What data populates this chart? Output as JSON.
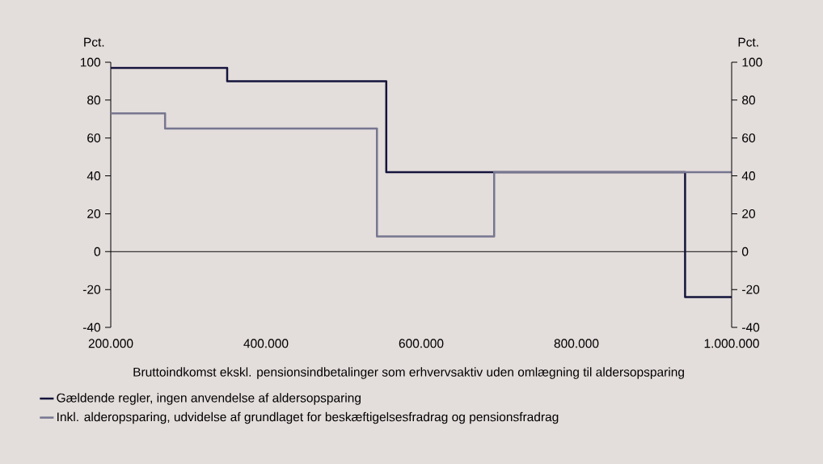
{
  "chart_data": {
    "type": "step",
    "xlabel": "Bruttoindkomst ekskl. pensionsindbetalinger som erhvervsaktiv uden omlægning til aldersopsparing",
    "ylabel": "Pct.",
    "y2label": "Pct.",
    "series": [
      {
        "name": "Gældende regler, ingen anvendelse af aldersopsparing",
        "color": "#14143c",
        "x": [
          200000,
          350000,
          555000,
          940000,
          1000000
        ],
        "values": [
          97,
          90,
          42,
          -24,
          -24
        ]
      },
      {
        "name": "Inkl. alderopsparing, udvidelse af grundlaget for beskæftigelsesfradrag og pensionsfradrag",
        "color": "#767690",
        "x": [
          200000,
          270000,
          543000,
          694000,
          1000000
        ],
        "values": [
          73,
          65,
          8,
          42,
          42
        ]
      }
    ],
    "xlim": [
      200000,
      1000000
    ],
    "xticks": [
      {
        "value": 200000,
        "label": "200.000"
      },
      {
        "value": 400000,
        "label": "400.000"
      },
      {
        "value": 600000,
        "label": "600.000"
      },
      {
        "value": 800000,
        "label": "800.000"
      },
      {
        "value": 1000000,
        "label": "1.000.000"
      }
    ],
    "ylim": [
      -40,
      100
    ],
    "yticks": [
      -40,
      -20,
      0,
      20,
      40,
      60,
      80,
      100
    ],
    "y2lim": [
      -40,
      100
    ],
    "y2ticks": [
      -40,
      -20,
      0,
      20,
      40,
      60,
      80,
      100
    ],
    "ref_lines": [
      {
        "axis": "y",
        "value": 0,
        "color": "#000000"
      }
    ],
    "legend": "bottom"
  }
}
